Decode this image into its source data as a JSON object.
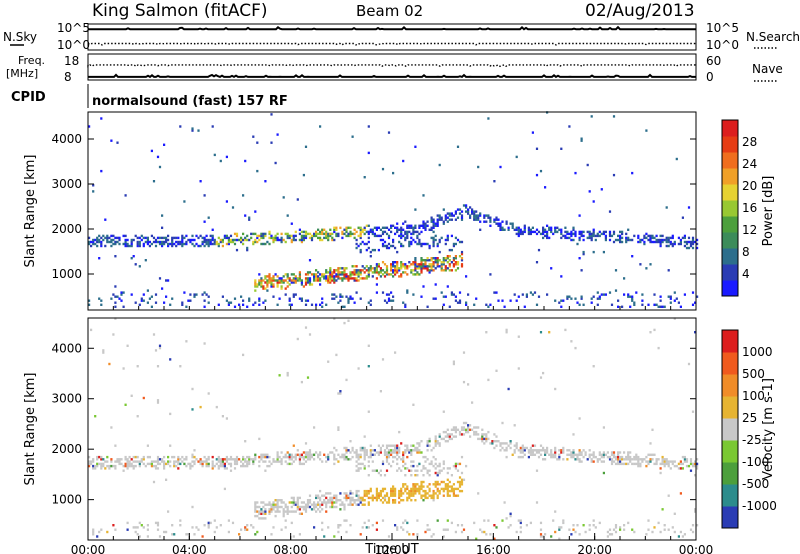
{
  "header": {
    "station": "King Salmon (fitACF)",
    "beam": "Beam 02",
    "date": "02/Aug/2013"
  },
  "chart_data": [
    {
      "type": "line",
      "name": "noise-panel",
      "left_labels": [
        "N.Sky"
      ],
      "left_ticks": [
        "10^5",
        "10^0"
      ],
      "right_labels": [
        "N.Search"
      ],
      "right_ticks": [
        "10^5",
        "10^0"
      ],
      "series": [
        {
          "name": "N.Sky",
          "style": "solid",
          "level": 0.8
        },
        {
          "name": "N.Search",
          "style": "dotted",
          "level": 0.25
        }
      ]
    },
    {
      "type": "line",
      "name": "frequency-panel",
      "left_labels": [
        "Freq.",
        "[MHz]"
      ],
      "left_ticks": [
        "18",
        "8"
      ],
      "right_labels": [
        "Nave"
      ],
      "right_ticks": [
        "60",
        "0"
      ],
      "series": [
        {
          "name": "Freq",
          "style": "solid",
          "level": 0.12
        },
        {
          "name": "Nave",
          "style": "dotted",
          "level": 0.58
        }
      ]
    },
    {
      "type": "table",
      "name": "cpid-panel",
      "label": "CPID",
      "text": "normalsound (fast) 157 RF"
    },
    {
      "type": "heatmap",
      "name": "power-panel",
      "ylabel": "Slant Range [km]",
      "ylim": [
        200,
        4600
      ],
      "yticks": [
        1000,
        2000,
        3000,
        4000
      ],
      "xlim": [
        0,
        24
      ],
      "colorbar": {
        "label": "Power [dB]",
        "ticks": [
          "4",
          "8",
          "12",
          "16",
          "20",
          "24",
          "28"
        ],
        "colors": [
          "#1a1aff",
          "#2a3cb4",
          "#2c6e8c",
          "#3c8c5a",
          "#4c9f3c",
          "#98c832",
          "#e6d232",
          "#f0a028",
          "#f06e1e",
          "#e63c14",
          "#dc1e1e"
        ]
      }
    },
    {
      "type": "heatmap",
      "name": "velocity-panel",
      "ylabel": "Slant Range [km]",
      "ylim": [
        200,
        4600
      ],
      "yticks": [
        1000,
        2000,
        3000,
        4000
      ],
      "xlim": [
        0,
        24
      ],
      "xticks": [
        "00:00",
        "04:00",
        "08:00",
        "12:00",
        "16:00",
        "20:00",
        "00:00"
      ],
      "xlabel": "Time UT",
      "colorbar": {
        "label": "Velocity [m s-1]",
        "ticks": [
          "1000",
          "500",
          "100",
          "25",
          "-25",
          "-100",
          "-500",
          "-1000"
        ],
        "colors": [
          "#2a3cb4",
          "#2c8c8c",
          "#4c9f3c",
          "#7ac832",
          "#c8c8c8",
          "#e6b432",
          "#f08c28",
          "#f05a1e",
          "#dc1e1e"
        ]
      }
    }
  ]
}
